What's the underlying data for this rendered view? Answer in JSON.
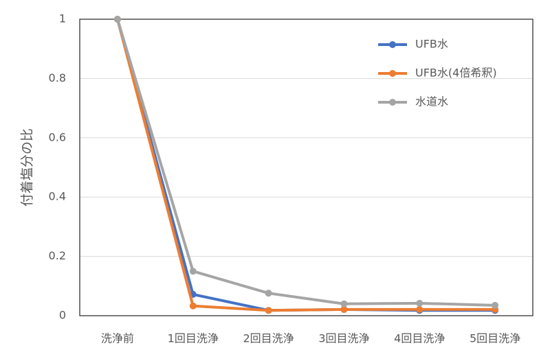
{
  "chart_data": {
    "type": "line",
    "y_label": "付着塩分の比",
    "categories": [
      "洗浄前",
      "1回目洗浄",
      "2回目洗浄",
      "3回目洗浄",
      "4回目洗浄",
      "5回目洗浄"
    ],
    "series": [
      {
        "name": "UFB水",
        "color": "#4472c4",
        "values": [
          1,
          0.072,
          0.018,
          0.021,
          0.018,
          0.018
        ]
      },
      {
        "name": "UFB水(4倍希釈)",
        "color": "#ed7d31",
        "values": [
          1,
          0.033,
          0.018,
          0.021,
          0.021,
          0.021
        ]
      },
      {
        "name": "水道水",
        "color": "#a5a5a5",
        "values": [
          1,
          0.15,
          0.076,
          0.04,
          0.042,
          0.035
        ]
      }
    ],
    "ylim": [
      0,
      1
    ],
    "yticks": [
      0,
      0.2,
      0.4,
      0.6,
      0.8,
      1
    ],
    "grid": true,
    "legend": "upper right"
  }
}
